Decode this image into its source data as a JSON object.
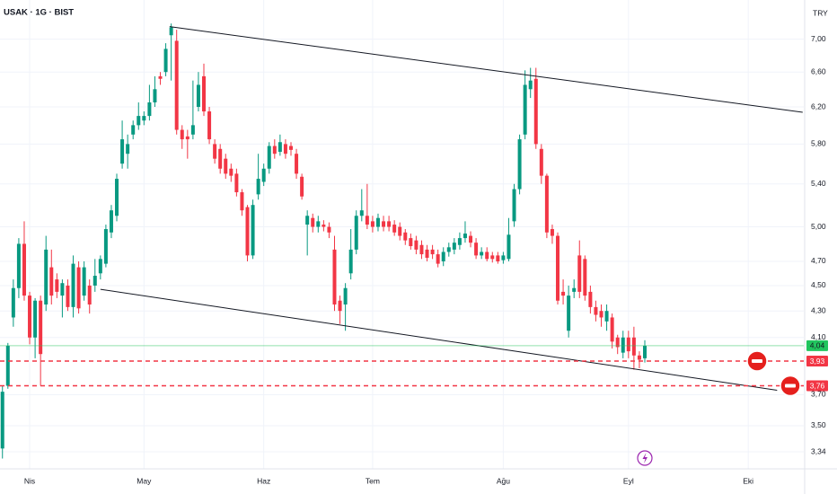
{
  "chart_data": {
    "type": "candlestick",
    "title": "USAK · 1G · BIST",
    "currency": "TRY",
    "log_scale": true,
    "grid": true,
    "up_color": "#089981",
    "down_color": "#f23645",
    "open": [
      3.36,
      3.76,
      4.25,
      4.48,
      4.85,
      4.42,
      4.1,
      4.38,
      4.35,
      4.65,
      4.55,
      4.42,
      4.5,
      4.33,
      4.65,
      4.42,
      4.5,
      4.5,
      4.6,
      4.68,
      4.95,
      5.1,
      5.6,
      5.7,
      5.9,
      6.0,
      6.05,
      6.1,
      6.25,
      6.55,
      6.6,
      7.05,
      6.98,
      5.95,
      5.88,
      5.9,
      6.2,
      6.55,
      6.15,
      5.8,
      5.75,
      5.65,
      5.55,
      5.5,
      5.32,
      5.18,
      4.75,
      5.3,
      5.42,
      5.55,
      5.78,
      5.72,
      5.8,
      5.78,
      5.7,
      5.47,
      5.02,
      5.08,
      5.0,
      5.02,
      5.0,
      4.8,
      4.38,
      4.35,
      4.6,
      4.8,
      5.1,
      5.1,
      5.05,
      5.0,
      5.05,
      5.05,
      5.02,
      5.0,
      4.95,
      4.9,
      4.88,
      4.84,
      4.8,
      4.8,
      4.76,
      4.7,
      4.78,
      4.8,
      4.84,
      4.9,
      4.92,
      4.86,
      4.75,
      4.78,
      4.75,
      4.75,
      4.71,
      4.72,
      5.05,
      5.35,
      5.9,
      6.4,
      6.52,
      5.75,
      5.48,
      4.98,
      4.92,
      4.45,
      4.15,
      4.45,
      4.75,
      4.72,
      4.45,
      4.33,
      4.3,
      4.22,
      4.25,
      4.1,
      3.99,
      4.1,
      4.1,
      3.97,
      3.95
    ],
    "high": [
      3.76,
      4.06,
      4.55,
      4.9,
      5.05,
      4.45,
      4.4,
      4.42,
      4.92,
      4.8,
      4.6,
      4.55,
      4.55,
      4.75,
      4.7,
      4.7,
      4.55,
      4.72,
      4.75,
      5.02,
      5.2,
      5.5,
      6.05,
      5.9,
      6.05,
      6.25,
      6.15,
      6.45,
      6.55,
      6.6,
      6.95,
      7.2,
      7.12,
      6.0,
      5.95,
      6.5,
      6.6,
      6.7,
      6.2,
      5.85,
      5.8,
      5.7,
      5.6,
      5.55,
      5.35,
      5.2,
      5.25,
      5.7,
      5.6,
      5.82,
      5.85,
      5.9,
      5.85,
      5.82,
      5.75,
      5.5,
      5.15,
      5.12,
      5.1,
      5.06,
      5.04,
      4.92,
      4.42,
      4.52,
      4.98,
      5.15,
      5.35,
      5.4,
      5.1,
      5.12,
      5.1,
      5.1,
      5.06,
      5.04,
      4.98,
      4.94,
      4.92,
      4.88,
      4.84,
      4.84,
      4.8,
      4.82,
      4.86,
      4.9,
      4.95,
      5.05,
      4.96,
      4.9,
      4.82,
      4.82,
      4.78,
      4.78,
      4.78,
      5.08,
      5.4,
      5.9,
      6.62,
      6.65,
      6.65,
      5.8,
      5.5,
      5.02,
      4.95,
      4.55,
      4.5,
      4.55,
      4.88,
      4.75,
      4.5,
      4.38,
      4.35,
      4.35,
      4.28,
      4.12,
      4.15,
      4.15,
      4.18,
      4.0,
      4.08
    ],
    "low": [
      3.3,
      3.74,
      4.18,
      4.4,
      4.38,
      4.05,
      3.95,
      3.76,
      4.3,
      4.35,
      4.4,
      4.25,
      4.3,
      4.25,
      4.28,
      4.38,
      4.28,
      4.45,
      4.55,
      4.65,
      4.9,
      5.05,
      5.55,
      5.55,
      5.85,
      5.95,
      6.0,
      6.05,
      6.2,
      6.45,
      6.55,
      6.5,
      5.9,
      5.75,
      5.65,
      5.85,
      6.15,
      6.1,
      5.8,
      5.6,
      5.5,
      5.45,
      5.42,
      5.28,
      5.1,
      4.7,
      4.72,
      5.25,
      5.38,
      5.5,
      5.65,
      5.68,
      5.65,
      5.68,
      5.45,
      5.25,
      4.75,
      4.95,
      4.95,
      4.96,
      4.9,
      4.3,
      4.2,
      4.15,
      4.55,
      4.76,
      5.05,
      4.98,
      4.95,
      4.96,
      4.96,
      4.96,
      4.92,
      4.88,
      4.84,
      4.8,
      4.76,
      4.72,
      4.7,
      4.72,
      4.65,
      4.66,
      4.74,
      4.76,
      4.8,
      4.86,
      4.82,
      4.72,
      4.72,
      4.7,
      4.69,
      4.68,
      4.68,
      4.7,
      5.0,
      5.3,
      5.85,
      6.3,
      5.75,
      5.4,
      4.9,
      4.85,
      4.35,
      4.35,
      4.1,
      4.4,
      4.4,
      4.38,
      4.28,
      4.22,
      4.18,
      4.15,
      4.02,
      3.98,
      3.95,
      3.95,
      3.87,
      3.88,
      3.92
    ],
    "close": [
      3.72,
      4.04,
      4.48,
      4.85,
      4.42,
      4.1,
      4.38,
      3.98,
      4.8,
      4.42,
      4.45,
      4.52,
      4.33,
      4.68,
      4.32,
      4.65,
      4.35,
      4.58,
      4.72,
      4.98,
      5.15,
      5.45,
      5.85,
      5.8,
      6.0,
      6.1,
      6.1,
      6.25,
      6.4,
      6.52,
      6.88,
      7.15,
      5.95,
      5.85,
      5.85,
      6.0,
      6.45,
      6.15,
      5.85,
      5.65,
      5.55,
      5.5,
      5.48,
      5.32,
      5.15,
      4.75,
      5.2,
      5.45,
      5.55,
      5.78,
      5.7,
      5.82,
      5.7,
      5.74,
      5.5,
      5.28,
      5.1,
      5.0,
      5.05,
      5.0,
      4.95,
      4.35,
      4.3,
      4.48,
      4.8,
      5.1,
      5.15,
      5.02,
      5.0,
      5.08,
      5.0,
      5.0,
      4.95,
      4.92,
      4.88,
      4.83,
      4.8,
      4.76,
      4.73,
      4.76,
      4.68,
      4.78,
      4.82,
      4.86,
      4.9,
      4.94,
      4.86,
      4.75,
      4.78,
      4.72,
      4.72,
      4.7,
      4.75,
      4.93,
      5.35,
      5.85,
      6.45,
      6.5,
      5.8,
      5.48,
      4.95,
      4.92,
      4.38,
      4.42,
      4.42,
      4.48,
      4.45,
      4.42,
      4.33,
      4.27,
      4.25,
      4.3,
      4.07,
      4.03,
      4.1,
      4.0,
      3.97,
      3.94,
      4.04
    ],
    "xlim": [
      -0.45,
      147.2
    ],
    "xticks": [
      {
        "value": 5,
        "label": "Nis"
      },
      {
        "value": 26,
        "label": "May"
      },
      {
        "value": 48,
        "label": "Haz"
      },
      {
        "value": 68,
        "label": "Tem"
      },
      {
        "value": 92,
        "label": "Ağu"
      },
      {
        "value": 115,
        "label": "Eyl"
      },
      {
        "value": 137,
        "label": "Eki"
      }
    ],
    "ylim": [
      3.25,
      7.51
    ],
    "yticks": [
      {
        "value": 7,
        "label": "7,00"
      },
      {
        "value": 6.6,
        "label": "6,60"
      },
      {
        "value": 6.2,
        "label": "6,20"
      },
      {
        "value": 5.8,
        "label": "5,80"
      },
      {
        "value": 5.4,
        "label": "5,40"
      },
      {
        "value": 5,
        "label": "5,00"
      },
      {
        "value": 4.7,
        "label": "4,70"
      },
      {
        "value": 4.5,
        "label": "4,50"
      },
      {
        "value": 4.3,
        "label": "4,30"
      },
      {
        "value": 4.1,
        "label": "4,10"
      },
      {
        "value": 3.7,
        "label": "3,70"
      },
      {
        "value": 3.5,
        "label": "3,50"
      },
      {
        "value": 3.34,
        "label": "3,34"
      }
    ],
    "trendlines": [
      {
        "start": [
          30.7,
          7.16
        ],
        "end": [
          147,
          6.14
        ]
      },
      {
        "start": [
          18,
          4.47
        ],
        "end": [
          142.3,
          3.73
        ]
      }
    ],
    "price_lines": [
      {
        "value": 4.04,
        "label": "4,04",
        "color": "#22c55e",
        "style": "solid"
      },
      {
        "value": 3.93,
        "label": "3,93",
        "color": "#f23645",
        "style": "dashed"
      },
      {
        "value": 3.76,
        "label": "3,76",
        "color": "#f23645",
        "style": "dashed"
      }
    ]
  }
}
